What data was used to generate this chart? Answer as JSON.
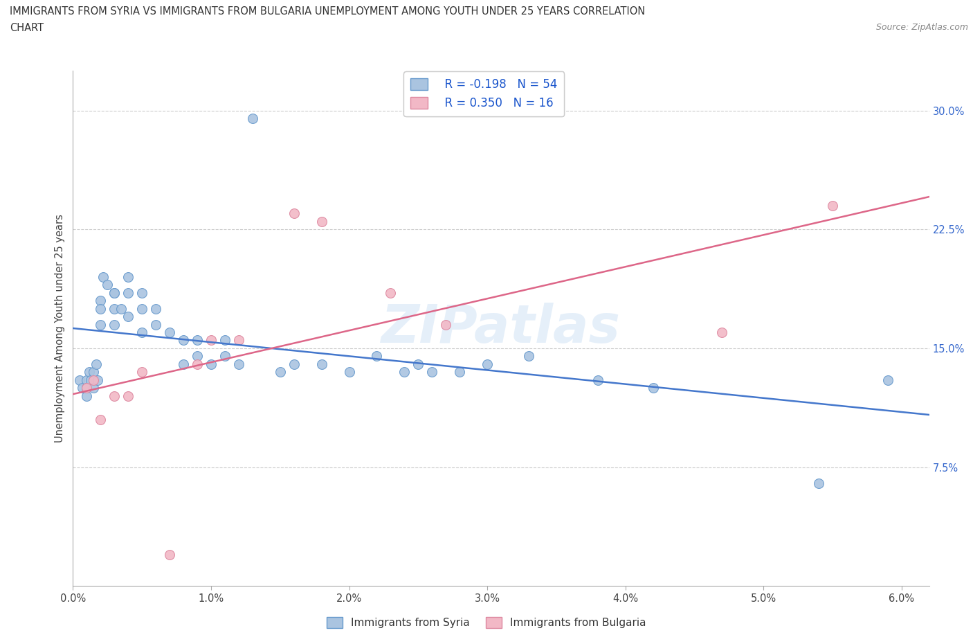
{
  "title_line1": "IMMIGRANTS FROM SYRIA VS IMMIGRANTS FROM BULGARIA UNEMPLOYMENT AMONG YOUTH UNDER 25 YEARS CORRELATION",
  "title_line2": "CHART",
  "source": "Source: ZipAtlas.com",
  "ylabel": "Unemployment Among Youth under 25 years",
  "xlim": [
    0.0,
    0.062
  ],
  "ylim": [
    0.0,
    0.325
  ],
  "xticks": [
    0.0,
    0.01,
    0.02,
    0.03,
    0.04,
    0.05,
    0.06
  ],
  "xticklabels": [
    "0.0%",
    "1.0%",
    "2.0%",
    "3.0%",
    "4.0%",
    "5.0%",
    "6.0%"
  ],
  "yticks_right": [
    0.075,
    0.15,
    0.225,
    0.3
  ],
  "yticklabels_right": [
    "7.5%",
    "15.0%",
    "22.5%",
    "30.0%"
  ],
  "syria_color": "#aac4e0",
  "syria_edge": "#6699cc",
  "bulgaria_color": "#f2b8c6",
  "bulgaria_edge": "#dd88a0",
  "syria_line_color": "#4477cc",
  "bulgaria_line_color": "#dd6688",
  "legend_R_syria": "R = -0.198",
  "legend_N_syria": "N = 54",
  "legend_R_bulgaria": "R = 0.350",
  "legend_N_bulgaria": "N = 16",
  "watermark": "ZIPatlas",
  "syria_x": [
    0.0005,
    0.0007,
    0.001,
    0.001,
    0.001,
    0.0012,
    0.0013,
    0.0015,
    0.0015,
    0.0017,
    0.0018,
    0.002,
    0.002,
    0.002,
    0.0022,
    0.0025,
    0.003,
    0.003,
    0.003,
    0.003,
    0.0035,
    0.004,
    0.004,
    0.004,
    0.005,
    0.005,
    0.005,
    0.006,
    0.006,
    0.007,
    0.008,
    0.008,
    0.009,
    0.009,
    0.01,
    0.011,
    0.011,
    0.012,
    0.013,
    0.015,
    0.016,
    0.018,
    0.02,
    0.022,
    0.024,
    0.025,
    0.026,
    0.028,
    0.03,
    0.033,
    0.038,
    0.042,
    0.054,
    0.059
  ],
  "syria_y": [
    0.13,
    0.125,
    0.13,
    0.125,
    0.12,
    0.135,
    0.13,
    0.135,
    0.125,
    0.14,
    0.13,
    0.18,
    0.175,
    0.165,
    0.195,
    0.19,
    0.185,
    0.185,
    0.175,
    0.165,
    0.175,
    0.195,
    0.185,
    0.17,
    0.185,
    0.175,
    0.16,
    0.175,
    0.165,
    0.16,
    0.14,
    0.155,
    0.155,
    0.145,
    0.14,
    0.155,
    0.145,
    0.14,
    0.295,
    0.135,
    0.14,
    0.14,
    0.135,
    0.145,
    0.135,
    0.14,
    0.135,
    0.135,
    0.14,
    0.145,
    0.13,
    0.125,
    0.065,
    0.13
  ],
  "bulgaria_x": [
    0.001,
    0.0015,
    0.002,
    0.003,
    0.004,
    0.005,
    0.007,
    0.009,
    0.01,
    0.012,
    0.016,
    0.018,
    0.023,
    0.027,
    0.047,
    0.055
  ],
  "bulgaria_y": [
    0.125,
    0.13,
    0.105,
    0.12,
    0.12,
    0.135,
    0.02,
    0.14,
    0.155,
    0.155,
    0.235,
    0.23,
    0.185,
    0.165,
    0.16,
    0.24
  ]
}
